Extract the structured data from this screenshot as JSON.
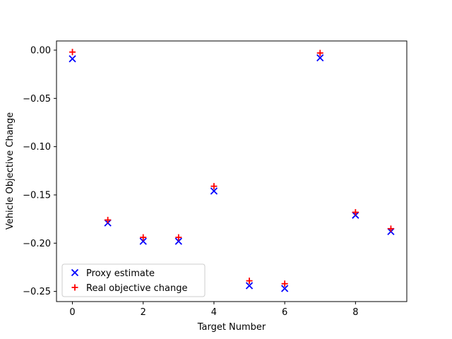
{
  "chart_data": {
    "type": "scatter",
    "title": "",
    "xlabel": "Target Number",
    "ylabel": "Vehicle Objective Change",
    "xlim": [
      -0.45,
      9.45
    ],
    "ylim": [
      -0.2605,
      0.0095
    ],
    "xticks": [
      0,
      2,
      4,
      6,
      8
    ],
    "yticks": [
      0.0,
      -0.05,
      -0.1,
      -0.15,
      -0.2,
      -0.25
    ],
    "xtick_labels": [
      "0",
      "2",
      "4",
      "6",
      "8"
    ],
    "ytick_labels": [
      "0.00",
      "−0.05",
      "−0.10",
      "−0.15",
      "−0.20",
      "−0.25"
    ],
    "grid": false,
    "legend_position": "lower-left",
    "series": [
      {
        "name": "Proxy estimate",
        "marker": "x",
        "color": "#0000ff",
        "x": [
          0,
          1,
          2,
          3,
          4,
          5,
          6,
          7,
          8,
          9
        ],
        "y": [
          -0.009,
          -0.179,
          -0.198,
          -0.198,
          -0.146,
          -0.244,
          -0.247,
          -0.008,
          -0.171,
          -0.188
        ]
      },
      {
        "name": "Real objective change",
        "marker": "+",
        "color": "#ff0000",
        "x": [
          0,
          1,
          2,
          3,
          4,
          5,
          6,
          7,
          8,
          9
        ],
        "y": [
          -0.002,
          -0.176,
          -0.194,
          -0.194,
          -0.141,
          -0.239,
          -0.242,
          -0.003,
          -0.168,
          -0.185
        ]
      }
    ]
  }
}
